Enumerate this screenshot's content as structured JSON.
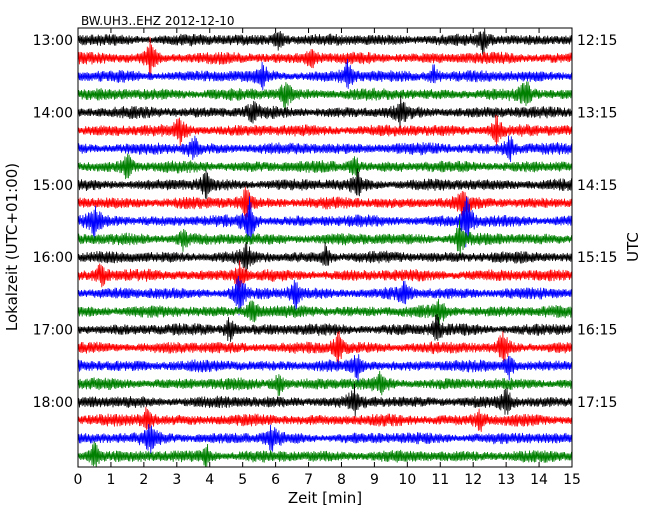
{
  "chart_data": {
    "type": "line",
    "title": "BW.UH3..EHZ 2012-12-10",
    "xlabel": "Zeit  [min]",
    "ylabel_left": "Lokalzeit (UTC+01:00)",
    "ylabel_right": "UTC",
    "xlim": [
      0,
      15
    ],
    "x_ticks": [
      "0",
      "1",
      "2",
      "3",
      "4",
      "5",
      "6",
      "7",
      "8",
      "9",
      "10",
      "11",
      "12",
      "13",
      "14",
      "15"
    ],
    "left_ticks": [
      "13:00",
      "14:00",
      "15:00",
      "16:00",
      "17:00",
      "18:00"
    ],
    "right_ticks": [
      "12:15",
      "13:15",
      "14:15",
      "15:15",
      "16:15",
      "17:15"
    ],
    "trace_colors": [
      "#000000",
      "#ff0000",
      "#0000ff",
      "#008000"
    ],
    "trace_count": 24,
    "events": [
      {
        "trace": 0,
        "x": 6.1,
        "amp": 1.2
      },
      {
        "trace": 0,
        "x": 12.3,
        "amp": 1.3
      },
      {
        "trace": 1,
        "x": 2.2,
        "amp": 2.0
      },
      {
        "trace": 1,
        "x": 7.1,
        "amp": 1.2
      },
      {
        "trace": 2,
        "x": 5.6,
        "amp": 1.2
      },
      {
        "trace": 2,
        "x": 8.2,
        "amp": 1.6
      },
      {
        "trace": 2,
        "x": 10.8,
        "amp": 1.2
      },
      {
        "trace": 3,
        "x": 6.3,
        "amp": 1.6
      },
      {
        "trace": 3,
        "x": 13.6,
        "amp": 1.5
      },
      {
        "trace": 4,
        "x": 5.3,
        "amp": 1.2
      },
      {
        "trace": 4,
        "x": 9.8,
        "amp": 1.3
      },
      {
        "trace": 5,
        "x": 3.1,
        "amp": 1.5
      },
      {
        "trace": 5,
        "x": 12.7,
        "amp": 1.5
      },
      {
        "trace": 6,
        "x": 3.5,
        "amp": 1.3
      },
      {
        "trace": 6,
        "x": 13.1,
        "amp": 1.6
      },
      {
        "trace": 7,
        "x": 1.5,
        "amp": 1.4
      },
      {
        "trace": 7,
        "x": 8.4,
        "amp": 1.2
      },
      {
        "trace": 8,
        "x": 3.9,
        "amp": 1.3
      },
      {
        "trace": 8,
        "x": 8.5,
        "amp": 1.5
      },
      {
        "trace": 9,
        "x": 5.1,
        "amp": 1.7
      },
      {
        "trace": 9,
        "x": 11.7,
        "amp": 1.4
      },
      {
        "trace": 10,
        "x": 5.2,
        "amp": 2.8
      },
      {
        "trace": 10,
        "x": 11.8,
        "amp": 3.0
      },
      {
        "trace": 10,
        "x": 0.5,
        "amp": 1.5
      },
      {
        "trace": 11,
        "x": 11.6,
        "amp": 1.8
      },
      {
        "trace": 11,
        "x": 3.2,
        "amp": 1.2
      },
      {
        "trace": 12,
        "x": 5.1,
        "amp": 1.3
      },
      {
        "trace": 12,
        "x": 7.5,
        "amp": 1.2
      },
      {
        "trace": 13,
        "x": 0.7,
        "amp": 1.4
      },
      {
        "trace": 13,
        "x": 4.9,
        "amp": 1.5
      },
      {
        "trace": 14,
        "x": 4.9,
        "amp": 2.3
      },
      {
        "trace": 14,
        "x": 6.6,
        "amp": 1.6
      },
      {
        "trace": 14,
        "x": 9.9,
        "amp": 1.3
      },
      {
        "trace": 15,
        "x": 5.3,
        "amp": 1.6
      },
      {
        "trace": 15,
        "x": 11.0,
        "amp": 1.2
      },
      {
        "trace": 16,
        "x": 4.6,
        "amp": 1.4
      },
      {
        "trace": 16,
        "x": 10.9,
        "amp": 1.5
      },
      {
        "trace": 17,
        "x": 7.9,
        "amp": 1.8
      },
      {
        "trace": 17,
        "x": 12.9,
        "amp": 2.0
      },
      {
        "trace": 18,
        "x": 8.5,
        "amp": 1.4
      },
      {
        "trace": 18,
        "x": 13.1,
        "amp": 1.3
      },
      {
        "trace": 19,
        "x": 6.1,
        "amp": 1.4
      },
      {
        "trace": 19,
        "x": 9.2,
        "amp": 1.2
      },
      {
        "trace": 20,
        "x": 8.4,
        "amp": 1.5
      },
      {
        "trace": 20,
        "x": 13.0,
        "amp": 1.3
      },
      {
        "trace": 21,
        "x": 2.1,
        "amp": 1.6
      },
      {
        "trace": 21,
        "x": 12.2,
        "amp": 1.2
      },
      {
        "trace": 22,
        "x": 2.2,
        "amp": 1.6
      },
      {
        "trace": 22,
        "x": 5.9,
        "amp": 1.4
      },
      {
        "trace": 23,
        "x": 0.5,
        "amp": 1.6
      },
      {
        "trace": 23,
        "x": 3.9,
        "amp": 1.2
      }
    ]
  }
}
